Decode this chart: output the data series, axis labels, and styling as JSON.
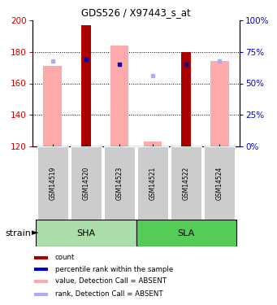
{
  "title": "GDS526 / X97443_s_at",
  "samples": [
    "GSM14519",
    "GSM14520",
    "GSM14523",
    "GSM14521",
    "GSM14522",
    "GSM14524"
  ],
  "ylim": [
    120,
    200
  ],
  "y_ticks_left": [
    120,
    140,
    160,
    180,
    200
  ],
  "y_ticks_right": [
    0,
    25,
    50,
    75,
    100
  ],
  "ylabel_left_color": "#cc0000",
  "ylabel_right_color": "#0000cc",
  "pink_top": [
    171,
    197,
    184,
    123,
    180,
    174
  ],
  "has_dark_red": [
    false,
    true,
    false,
    false,
    true,
    false
  ],
  "dark_red_top": [
    120,
    197,
    120,
    120,
    180,
    120
  ],
  "pink_absent": [
    true,
    false,
    true,
    true,
    false,
    true
  ],
  "has_blue_dot": [
    false,
    true,
    true,
    false,
    true,
    false
  ],
  "blue_y": [
    120,
    175,
    172,
    120,
    172,
    120
  ],
  "has_light_blue": [
    true,
    false,
    true,
    true,
    false,
    true
  ],
  "light_blue_y": [
    174,
    120,
    172,
    165,
    120,
    174
  ],
  "group_sha_color": "#aaddaa",
  "group_sla_color": "#55cc55",
  "legend_items": [
    {
      "color": "#aa0000",
      "label": "count"
    },
    {
      "color": "#0000cc",
      "label": "percentile rank within the sample"
    },
    {
      "color": "#ffaaaa",
      "label": "value, Detection Call = ABSENT"
    },
    {
      "color": "#aaaaff",
      "label": "rank, Detection Call = ABSENT"
    }
  ]
}
